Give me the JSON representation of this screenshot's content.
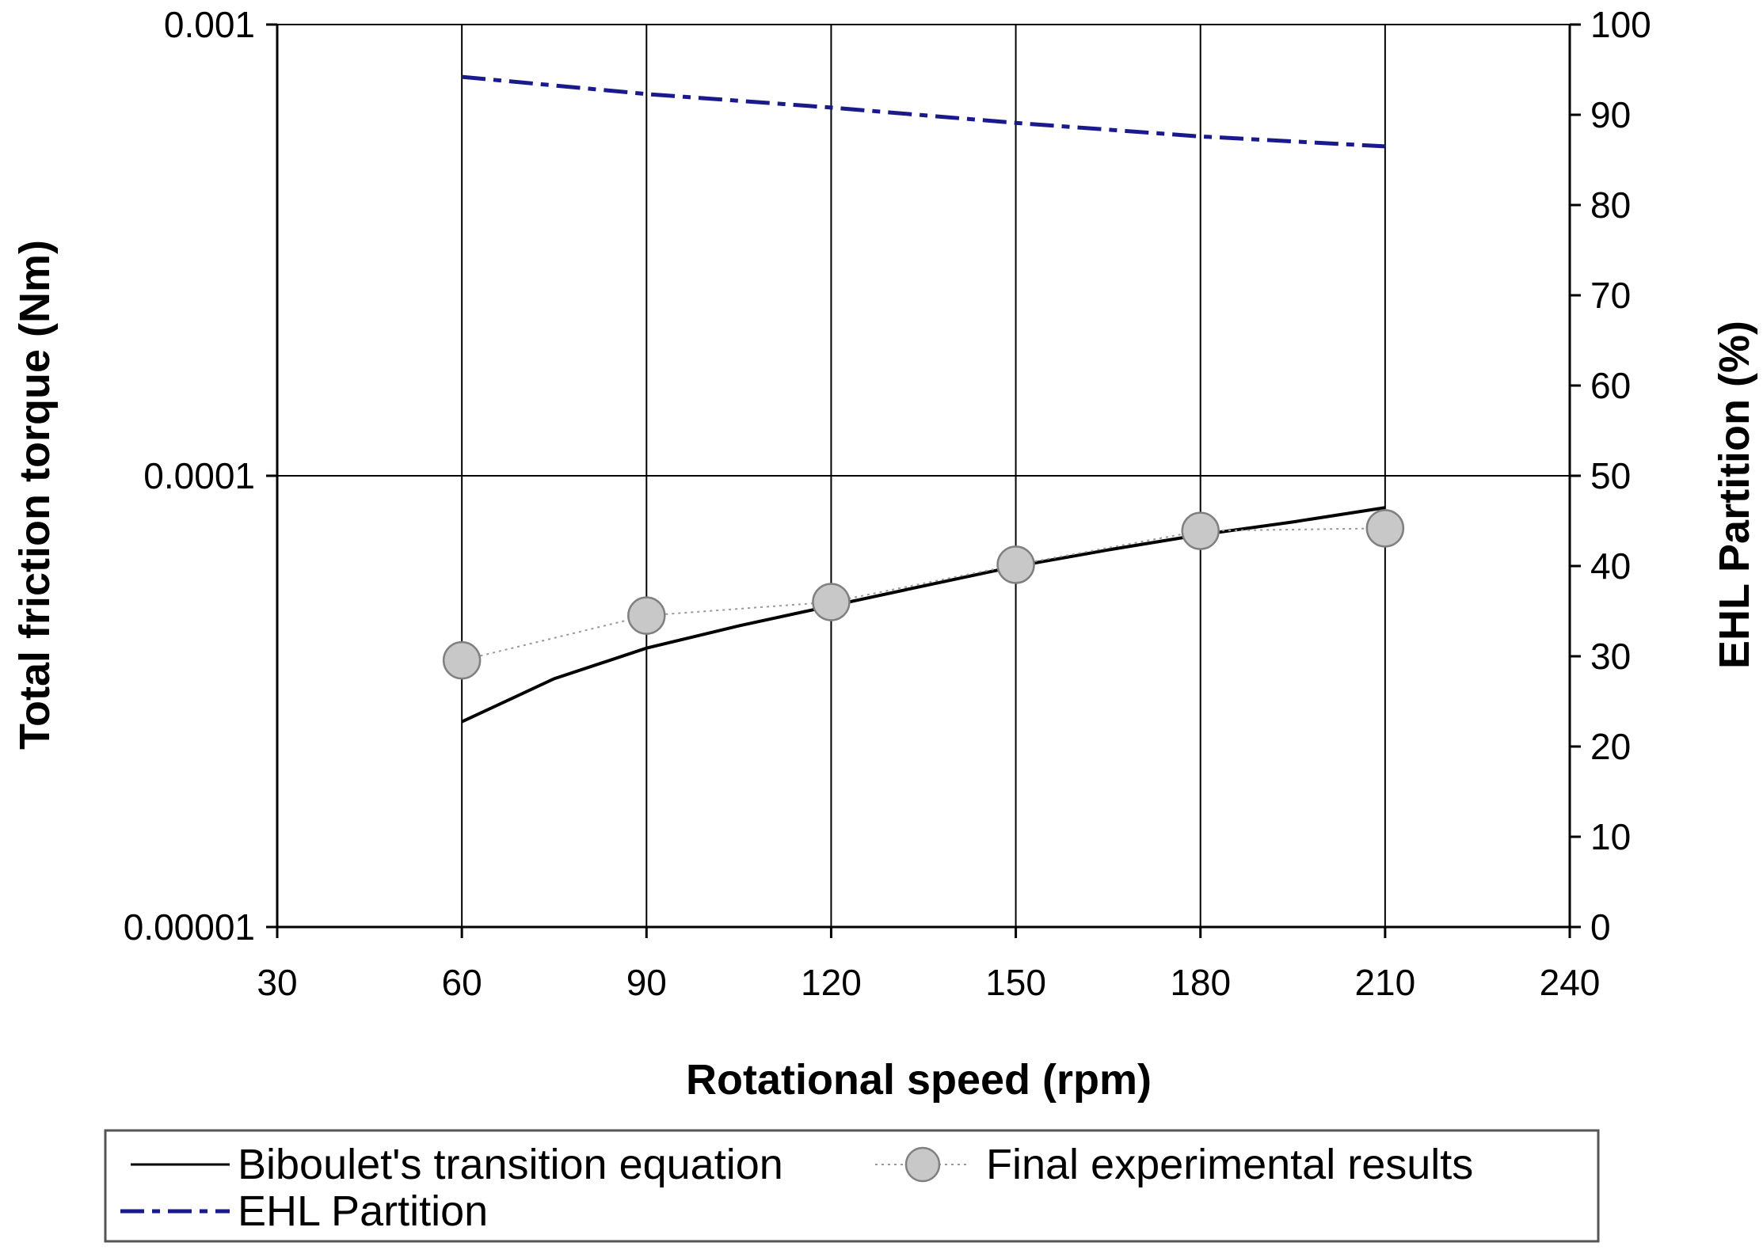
{
  "chart_data": {
    "type": "line",
    "title": "",
    "xlabel": "Rotational speed (rpm)",
    "ylabel": "Total friction torque (Nm)",
    "y2label": "EHL Partition (%)",
    "xlim": [
      30,
      240
    ],
    "ylim": [
      1e-05,
      0.001
    ],
    "y_scale": "log",
    "y2lim": [
      0,
      100
    ],
    "x_ticks": [
      "30",
      "60",
      "90",
      "120",
      "150",
      "180",
      "210",
      "240"
    ],
    "y_ticks": [
      "0.00001",
      "0.0001",
      "0.001"
    ],
    "y2_ticks": [
      "0",
      "10",
      "20",
      "30",
      "40",
      "50",
      "60",
      "70",
      "80",
      "90",
      "100"
    ],
    "grid": "vertical gridlines at data x values plus horizontal line at 0.0001",
    "legend_position": "bottom",
    "series": [
      {
        "name": "Biboulet's transition equation",
        "axis": "left",
        "style": "solid black line",
        "color": "#000000",
        "x": [
          60,
          75,
          90,
          105,
          120,
          135,
          150,
          165,
          180,
          195,
          210
        ],
        "y": [
          2.85e-05,
          3.55e-05,
          4.15e-05,
          4.65e-05,
          5.15e-05,
          5.7e-05,
          6.3e-05,
          6.85e-05,
          7.4e-05,
          7.9e-05,
          8.5e-05
        ]
      },
      {
        "name": "Final experimental results",
        "axis": "left",
        "style": "grey circle markers with dotted line",
        "color": "#c8c8c8",
        "x": [
          60,
          90,
          120,
          150,
          180,
          210
        ],
        "y": [
          3.9e-05,
          4.9e-05,
          5.25e-05,
          6.35e-05,
          7.55e-05,
          7.65e-05
        ]
      },
      {
        "name": "EHL Partition",
        "axis": "right",
        "style": "dark blue dash-dot line",
        "color": "#1a1a8c",
        "x": [
          60,
          90,
          120,
          150,
          180,
          210
        ],
        "y": [
          94.2,
          92.3,
          90.8,
          89.1,
          87.6,
          86.5
        ]
      }
    ]
  }
}
